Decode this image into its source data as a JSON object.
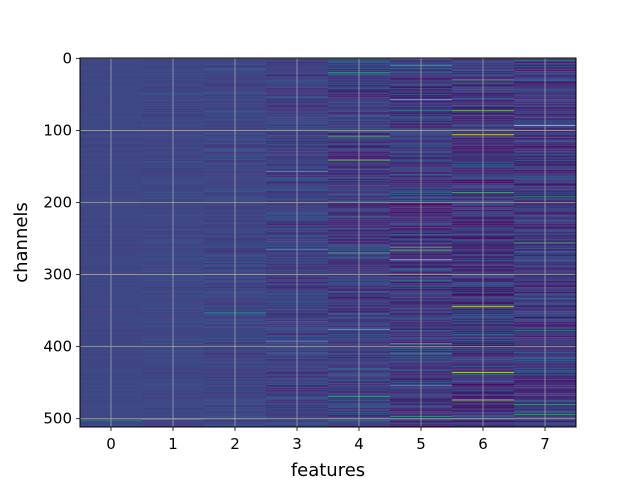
{
  "chart_data": {
    "type": "heatmap",
    "title": "",
    "xlabel": "features",
    "ylabel": "channels",
    "x": [
      0,
      1,
      2,
      3,
      4,
      5,
      6,
      7
    ],
    "xlim": [
      -0.5,
      7.5
    ],
    "ylim": [
      511.5,
      -0.5
    ],
    "y_ticks": [
      0,
      100,
      200,
      300,
      400,
      500
    ],
    "rows": 512,
    "y_inverted": true,
    "grid": true,
    "colormap": "viridis",
    "column_spread": [
      0.02,
      0.04,
      0.07,
      0.12,
      0.16,
      0.2,
      0.22,
      0.2
    ],
    "column_base": [
      0.22,
      0.22,
      0.22,
      0.21,
      0.2,
      0.19,
      0.18,
      0.19
    ],
    "highlights": [
      {
        "x": 5,
        "y": 10,
        "value": 0.6
      },
      {
        "x": 5,
        "y": 57,
        "value": 0.75
      },
      {
        "x": 6,
        "y": 30,
        "value": 0.7
      },
      {
        "x": 6,
        "y": 72,
        "value": 0.8
      },
      {
        "x": 6,
        "y": 106,
        "value": 0.98
      },
      {
        "x": 7,
        "y": 93,
        "value": 0.95
      },
      {
        "x": 4,
        "y": 20,
        "value": 0.6
      },
      {
        "x": 4,
        "y": 108,
        "value": 0.7
      },
      {
        "x": 4,
        "y": 141,
        "value": 0.85
      },
      {
        "x": 3,
        "y": 157,
        "value": 0.65
      },
      {
        "x": 6,
        "y": 186,
        "value": 0.7
      },
      {
        "x": 7,
        "y": 192,
        "value": 0.6
      },
      {
        "x": 4,
        "y": 220,
        "value": 0.6
      },
      {
        "x": 5,
        "y": 262,
        "value": 0.8
      },
      {
        "x": 5,
        "y": 266,
        "value": 0.75
      },
      {
        "x": 5,
        "y": 279,
        "value": 0.8
      },
      {
        "x": 4,
        "y": 270,
        "value": 0.7
      },
      {
        "x": 3,
        "y": 265,
        "value": 0.55
      },
      {
        "x": 7,
        "y": 256,
        "value": 0.7
      },
      {
        "x": 2,
        "y": 353,
        "value": 0.5
      },
      {
        "x": 6,
        "y": 344,
        "value": 0.95
      },
      {
        "x": 4,
        "y": 376,
        "value": 0.7
      },
      {
        "x": 7,
        "y": 378,
        "value": 0.6
      },
      {
        "x": 3,
        "y": 393,
        "value": 0.55
      },
      {
        "x": 5,
        "y": 396,
        "value": 0.7
      },
      {
        "x": 5,
        "y": 410,
        "value": 0.6
      },
      {
        "x": 6,
        "y": 436,
        "value": 0.95
      },
      {
        "x": 5,
        "y": 454,
        "value": 0.6
      },
      {
        "x": 4,
        "y": 469,
        "value": 0.65
      },
      {
        "x": 6,
        "y": 474,
        "value": 0.9
      },
      {
        "x": 7,
        "y": 480,
        "value": 0.65
      },
      {
        "x": 7,
        "y": 494,
        "value": 0.65
      },
      {
        "x": 5,
        "y": 497,
        "value": 0.6
      },
      {
        "x": 1,
        "y": 501,
        "value": 0.5
      },
      {
        "x": 0,
        "y": 503,
        "value": 0.45
      }
    ]
  }
}
